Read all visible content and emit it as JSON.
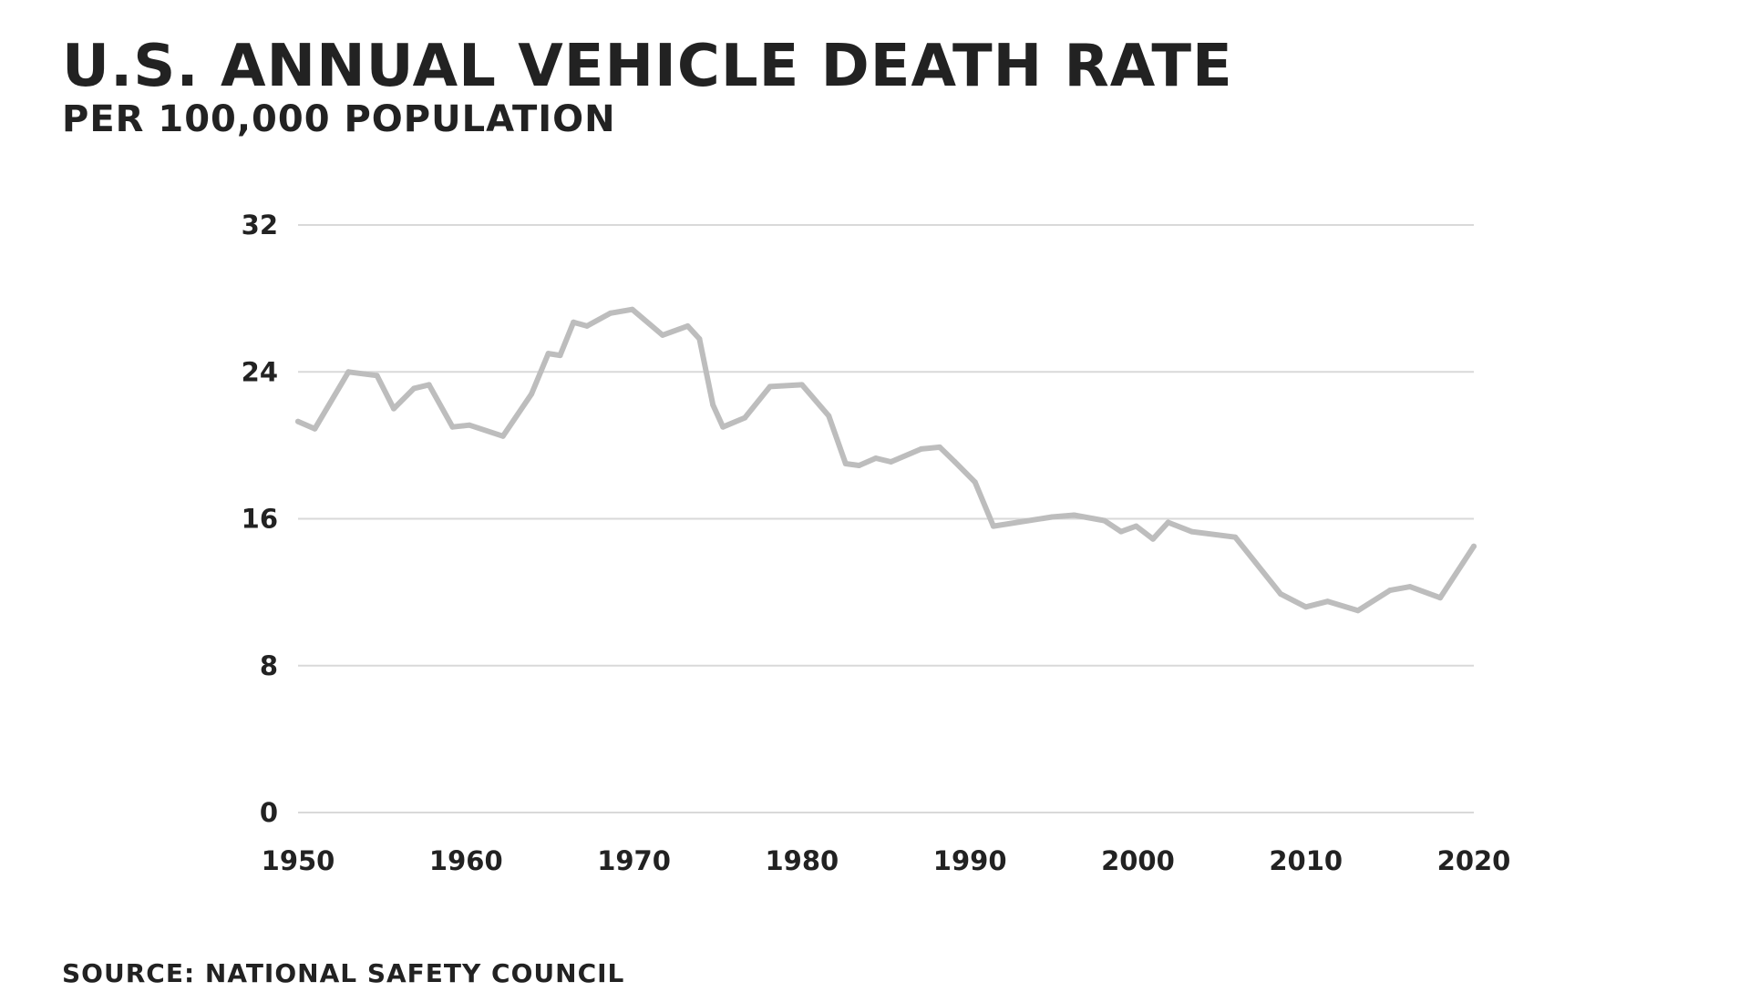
{
  "header": {
    "title": "U.S. ANNUAL VEHICLE DEATH RATE",
    "subtitle": "PER 100,000 POPULATION"
  },
  "footer": {
    "source": "SOURCE: NATIONAL SAFETY COUNCIL"
  },
  "chart_data": {
    "type": "line",
    "title": "U.S. ANNUAL VEHICLE DEATH RATE",
    "subtitle": "PER 100,000 POPULATION",
    "xlabel": "",
    "ylabel": "",
    "xlim": [
      1950,
      2020
    ],
    "ylim": [
      0,
      32
    ],
    "x_ticks": [
      1950,
      1960,
      1970,
      1980,
      1990,
      2000,
      2010,
      2020
    ],
    "y_ticks": [
      0,
      8,
      16,
      24,
      32
    ],
    "grid": "horizontal",
    "line_color": "#bdbdbd",
    "grid_color": "#d9d9d9",
    "series": [
      {
        "x": [
          1950,
          1951,
          1953,
          1954.7,
          1955.7,
          1956.9,
          1957.8,
          1959.2,
          1960.2,
          1962.2,
          1963.9,
          1964.9,
          1965.6,
          1966.4,
          1967.2,
          1968.6,
          1969.9,
          1971.7,
          1973.2,
          1973.9,
          1974.7,
          1975.3,
          1976.6,
          1978.1,
          1980,
          1981.6,
          1982.6,
          1983.4,
          1984.4,
          1985.3,
          1987.1,
          1988.2,
          1989.1,
          1990.3,
          1991.4,
          1994.9,
          1996.2,
          1998,
          1999,
          1999.9,
          2000.9,
          2001.8,
          2003.2,
          2005.8,
          2008.5,
          2010,
          2011.3,
          2013.1,
          2015,
          2016.2,
          2018,
          2020
        ],
        "y": [
          21.3,
          20.9,
          24.0,
          23.8,
          22.0,
          23.1,
          23.3,
          21.0,
          21.1,
          20.5,
          22.8,
          25.0,
          24.9,
          26.7,
          26.5,
          27.2,
          27.4,
          26.0,
          26.5,
          25.8,
          22.2,
          21.0,
          21.5,
          23.2,
          23.3,
          21.6,
          19.0,
          18.9,
          19.3,
          19.1,
          19.8,
          19.9,
          19.1,
          18.0,
          15.6,
          16.1,
          16.2,
          15.9,
          15.3,
          15.6,
          14.9,
          15.8,
          15.3,
          15.0,
          11.9,
          11.2,
          11.5,
          11.0,
          12.1,
          12.3,
          11.7,
          14.5
        ]
      }
    ]
  }
}
